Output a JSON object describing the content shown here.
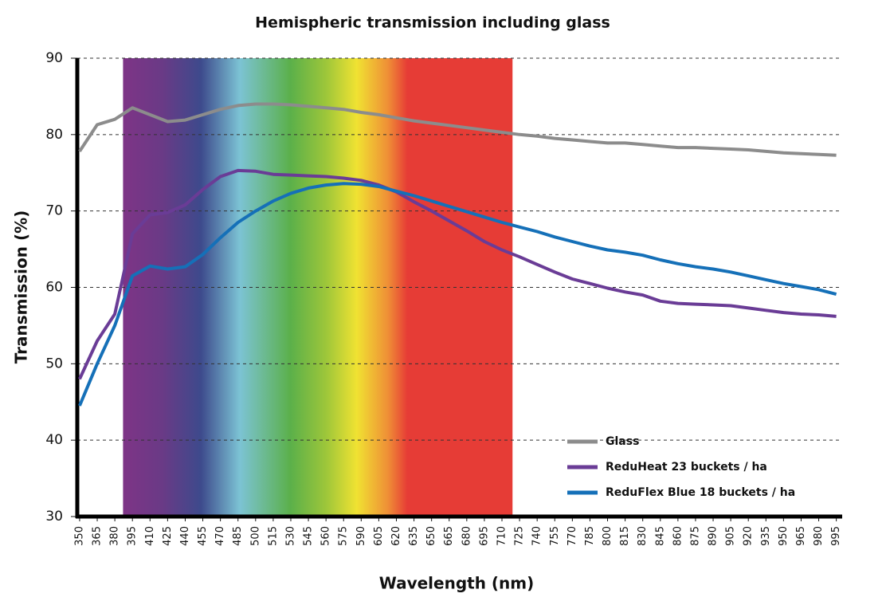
{
  "chart_data": {
    "type": "line",
    "title": "Hemispheric transmission including glass",
    "x_label": "Wavelength (nm)",
    "y_label": "Transmission (%)",
    "x": [
      350,
      365,
      380,
      395,
      410,
      425,
      440,
      455,
      470,
      485,
      500,
      515,
      530,
      545,
      560,
      575,
      590,
      605,
      620,
      635,
      650,
      665,
      680,
      695,
      710,
      725,
      740,
      755,
      770,
      785,
      800,
      815,
      830,
      845,
      860,
      875,
      890,
      905,
      920,
      935,
      950,
      965,
      980,
      995
    ],
    "series": [
      {
        "name": "Glass",
        "color": "#8c8c8c",
        "values": [
          77.8,
          81.3,
          82,
          83.5,
          82.6,
          81.7,
          81.9,
          82.6,
          83.3,
          83.8,
          84,
          84,
          83.9,
          83.7,
          83.5,
          83.3,
          82.9,
          82.6,
          82.2,
          81.8,
          81.5,
          81.2,
          80.9,
          80.6,
          80.3,
          80,
          79.8,
          79.5,
          79.3,
          79.1,
          78.9,
          78.9,
          78.7,
          78.5,
          78.3,
          78.3,
          78.2,
          78.1,
          78,
          77.8,
          77.6,
          77.5,
          77.4,
          77.3
        ]
      },
      {
        "name": "ReduHeat 23 buckets / ha",
        "color": "#6a3c96",
        "values": [
          48,
          53,
          56.5,
          67,
          69.5,
          69.8,
          70.8,
          72.8,
          74.5,
          75.3,
          75.2,
          74.8,
          74.7,
          74.6,
          74.5,
          74.3,
          74,
          73.4,
          72.5,
          71.2,
          70,
          68.7,
          67.4,
          66,
          64.9,
          64,
          63,
          62,
          61.1,
          60.5,
          59.9,
          59.4,
          59,
          58.2,
          57.9,
          57.8,
          57.7,
          57.6,
          57.3,
          57,
          56.7,
          56.5,
          56.4,
          56.2
        ]
      },
      {
        "name": "ReduFlex Blue 18 buckets / ha",
        "color": "#1570b8",
        "values": [
          44.5,
          50,
          55,
          61.5,
          62.8,
          62.4,
          62.7,
          64.3,
          66.5,
          68.5,
          70,
          71.3,
          72.3,
          73,
          73.4,
          73.6,
          73.5,
          73.2,
          72.6,
          72,
          71.3,
          70.6,
          69.9,
          69.2,
          68.5,
          67.9,
          67.3,
          66.6,
          66,
          65.4,
          64.9,
          64.6,
          64.2,
          63.6,
          63.1,
          62.7,
          62.4,
          62,
          61.5,
          61,
          60.5,
          60.1,
          59.7,
          59.1
        ]
      }
    ],
    "xlim": [
      348,
      1000
    ],
    "ylim": [
      30,
      90
    ],
    "xticks": [
      350,
      365,
      380,
      395,
      410,
      425,
      440,
      455,
      470,
      485,
      500,
      515,
      530,
      545,
      560,
      575,
      590,
      605,
      620,
      635,
      650,
      665,
      680,
      695,
      710,
      725,
      740,
      755,
      770,
      785,
      800,
      815,
      830,
      845,
      860,
      875,
      890,
      905,
      920,
      935,
      950,
      965,
      980,
      995
    ],
    "yticks": [
      30,
      40,
      50,
      60,
      70,
      80,
      90
    ],
    "grid": true,
    "legend": "lower right",
    "shaded_region": [
      387,
      719
    ]
  }
}
